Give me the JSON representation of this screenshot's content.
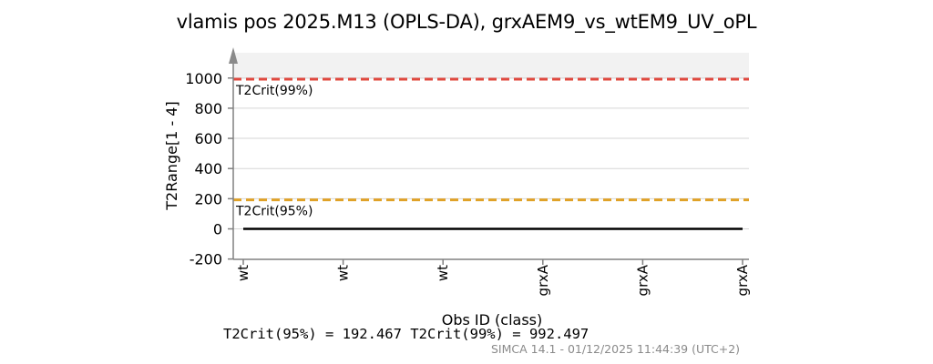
{
  "chart": {
    "title": "vlamis pos 2025.M13 (OPLS-DA), grxAEM9_vs_wtEM9_UV_oPL",
    "footer": "T2Crit(95%) = 192.467 T2Crit(99%) = 992.497",
    "watermark": "SIMCA 14.1 - 01/12/2025 11:44:39 (UTC+2)"
  },
  "chart_data": {
    "type": "line",
    "title": "vlamis pos 2025.M13 (OPLS-DA), grxAEM9_vs_wtEM9_UV_oPL",
    "xlabel": "Obs ID (class)",
    "ylabel": "T2Range[1 - 4]",
    "categories": [
      "wt",
      "wt",
      "wt",
      "grxA",
      "grxA",
      "grxA"
    ],
    "ylim": [
      -200,
      1000
    ],
    "yticks": [
      -200,
      0,
      200,
      400,
      600,
      800,
      1000
    ],
    "grid": true,
    "series": [
      {
        "values": [
          0,
          0,
          0,
          0,
          0,
          0
        ],
        "color": "#000000"
      }
    ],
    "reference_lines": [
      {
        "label": "T2Crit(99%)",
        "value": 992.497,
        "color": "#e0483e",
        "style": "dashed"
      },
      {
        "label": "T2Crit(95%)",
        "value": 192.467,
        "color": "#e0a228",
        "style": "dashed"
      }
    ],
    "shaded_region_above": 992.497,
    "shade_color": "#f2f2f2"
  }
}
